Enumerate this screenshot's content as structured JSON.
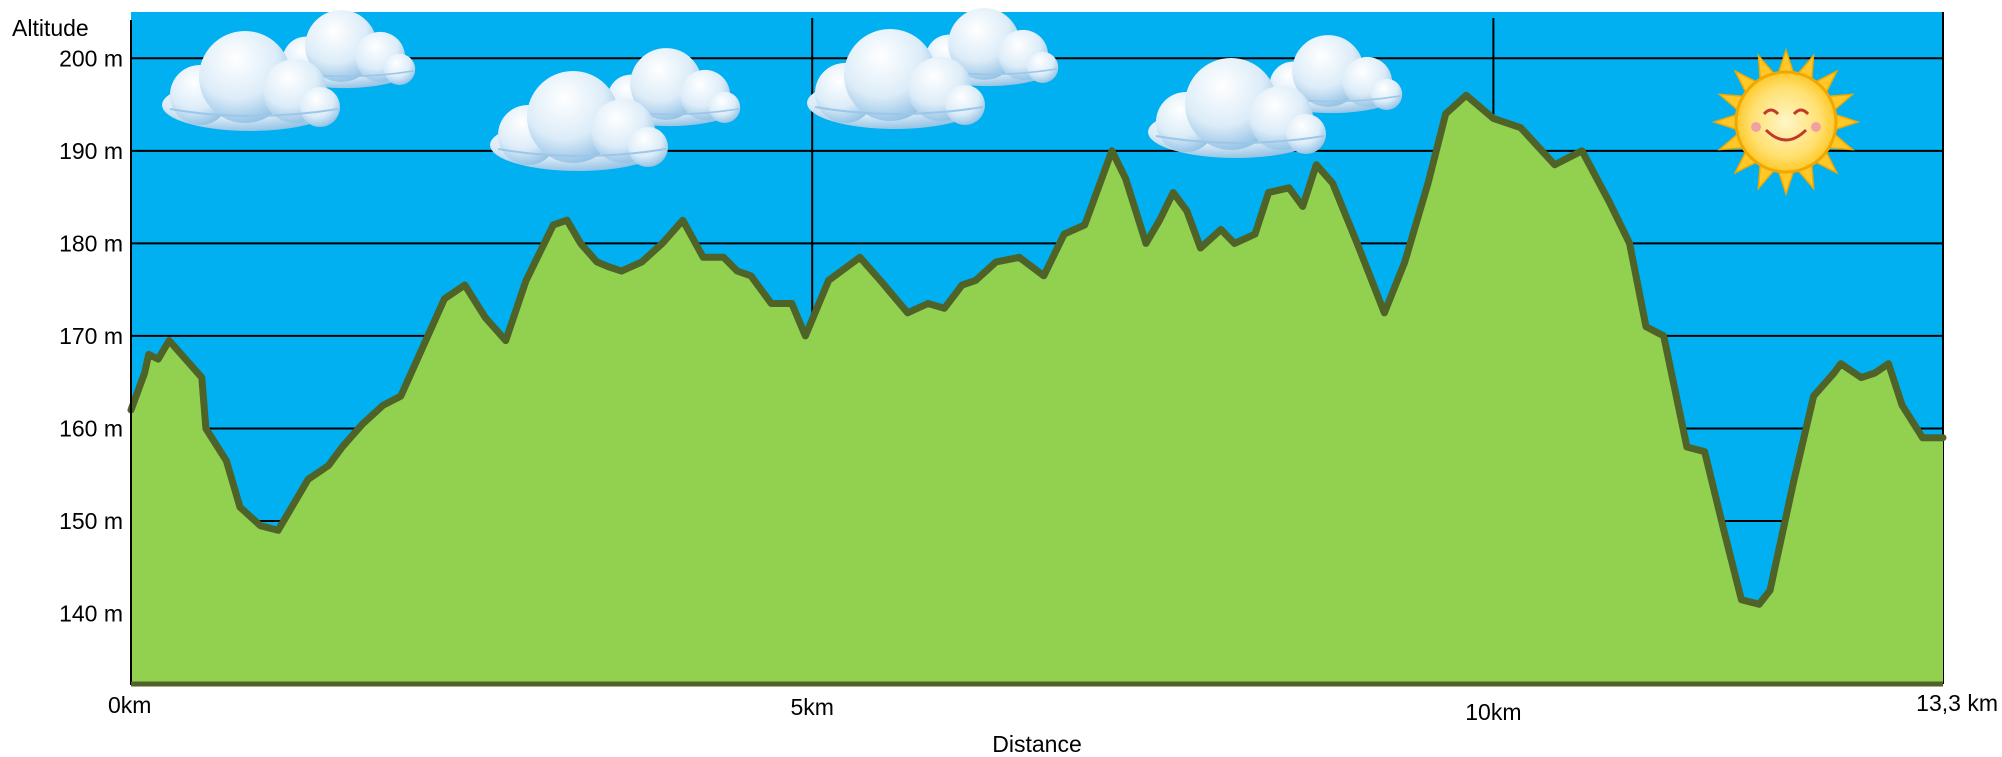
{
  "chart_data": {
    "type": "area",
    "title": "",
    "ylabel": "Altitude",
    "xlabel": "Distance",
    "xlim": [
      0,
      13.3
    ],
    "ylim": [
      132.5,
      205
    ],
    "grid": true,
    "colors": {
      "sky": "#00b0f0",
      "fill": "#92d050",
      "line": "#4f6228",
      "grid": "#000000"
    },
    "y_ticks": [
      {
        "value": 200,
        "label": "200 m"
      },
      {
        "value": 190,
        "label": "190 m"
      },
      {
        "value": 180,
        "label": "180 m"
      },
      {
        "value": 170,
        "label": "170 m"
      },
      {
        "value": 160,
        "label": "160 m"
      },
      {
        "value": 150,
        "label": "150 m"
      },
      {
        "value": 140,
        "label": "140 m"
      }
    ],
    "x_ticks": [
      {
        "value": 0,
        "label": "0km"
      },
      {
        "value": 5,
        "label": "5km"
      },
      {
        "value": 10,
        "label": "10km"
      },
      {
        "value": 13.3,
        "label": "13,3 km"
      }
    ],
    "decorations": [
      "cloud-icon",
      "cloud-icon",
      "cloud-icon",
      "cloud-icon",
      "sun-icon"
    ],
    "series": [
      {
        "x": [
          0,
          0.1,
          0.13,
          0.2,
          0.28,
          0.4,
          0.52,
          0.55,
          0.7,
          0.8,
          0.95,
          1.08,
          1.3,
          1.45,
          1.55,
          1.7,
          1.85,
          1.98,
          2.3,
          2.45,
          2.6,
          2.75,
          2.9,
          3.1,
          3.2,
          3.3,
          3.42,
          3.5,
          3.6,
          3.75,
          3.9,
          4.05,
          4.2,
          4.35,
          4.45,
          4.55,
          4.7,
          4.85,
          4.95,
          5.12,
          5.35,
          5.5,
          5.7,
          5.85,
          5.97,
          6.1,
          6.2,
          6.35,
          6.52,
          6.7,
          6.85,
          7.0,
          7.2,
          7.3,
          7.45,
          7.55,
          7.65,
          7.75,
          7.85,
          8.0,
          8.1,
          8.25,
          8.35,
          8.5,
          8.6,
          8.7,
          8.82,
          9.0,
          9.2,
          9.35,
          9.52,
          9.65,
          9.8,
          10.0,
          10.2,
          10.45,
          10.65,
          10.85,
          11.0,
          11.12,
          11.25,
          11.42,
          11.55,
          11.7,
          11.82,
          11.95,
          12.03,
          12.2,
          12.35,
          12.5,
          12.55,
          12.7,
          12.8,
          12.9,
          13.0,
          13.15,
          13.3
        ],
        "y": [
          162,
          166,
          168,
          167.5,
          169.5,
          167.5,
          165.5,
          160,
          156.5,
          151.5,
          149.5,
          149,
          154.5,
          156,
          158,
          160.5,
          162.5,
          163.5,
          174,
          175.5,
          172,
          169.5,
          176,
          182,
          182.5,
          180,
          178,
          177.5,
          177,
          178,
          180,
          182.5,
          178.5,
          178.5,
          177,
          176.5,
          173.5,
          173.5,
          170,
          176,
          178.5,
          176,
          172.5,
          173.5,
          173,
          175.5,
          176,
          178,
          178.5,
          176.5,
          181,
          182,
          190,
          187,
          180,
          182.5,
          185.5,
          183.5,
          179.5,
          181.5,
          180,
          181,
          185.5,
          186,
          184,
          188.5,
          186.5,
          180,
          172.5,
          178,
          186.5,
          194,
          196,
          193.5,
          192.5,
          188.5,
          190,
          184.5,
          180,
          171,
          170,
          158,
          157.5,
          148.5,
          141.5,
          141,
          142.5,
          154,
          163.5,
          166,
          167,
          165.5,
          166,
          167,
          162.5,
          159,
          159
        ]
      }
    ]
  }
}
